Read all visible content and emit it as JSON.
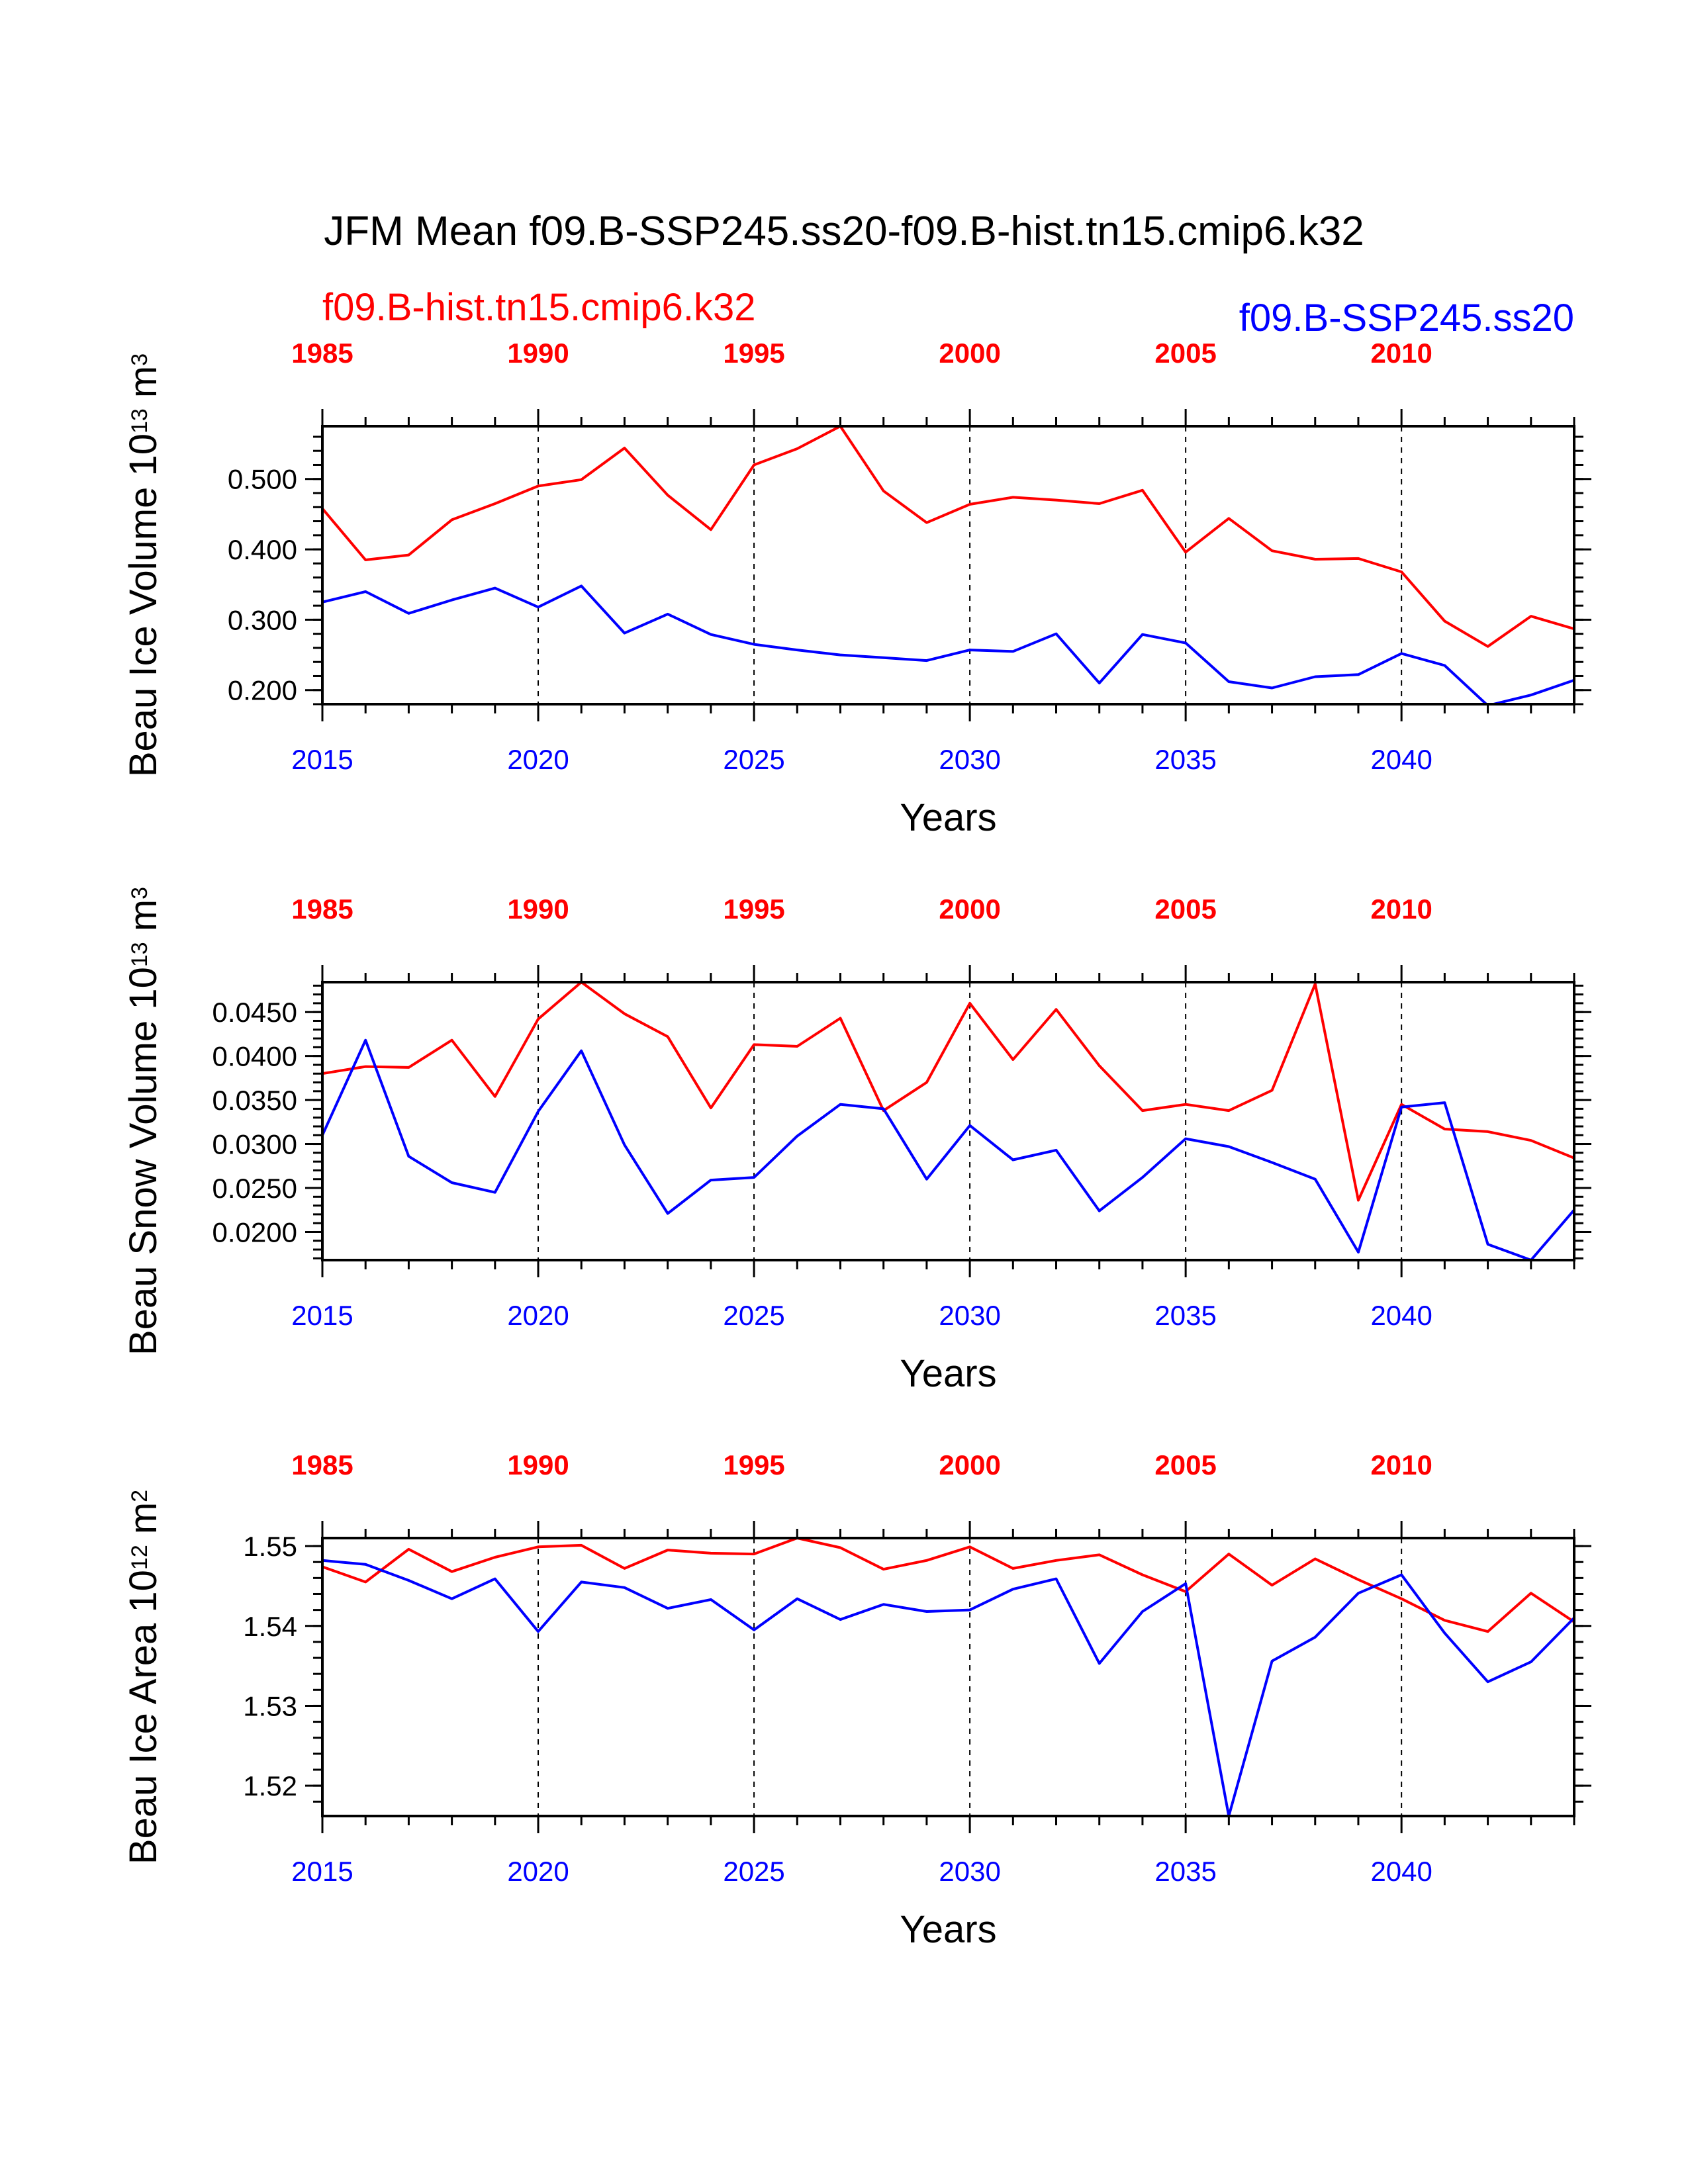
{
  "figure": {
    "title": "JFM Mean f09.B-SSP245.ss20-f09.B-hist.tn15.cmip6.k32",
    "left_label": "f09.B-hist.tn15.cmip6.k32",
    "right_label": "f09.B-SSP245.ss20",
    "left_label_color": "#ff0000",
    "right_label_color": "#0000ff"
  },
  "chart_data": [
    {
      "type": "line",
      "ylabel_base": "Beau Ice Volume 10",
      "ylabel_exp": "13",
      "ylabel_unit": " m",
      "ylabel_unit_exp": "3",
      "xlabel": "Years",
      "ylim": [
        0.18,
        0.575
      ],
      "yticks": [
        0.2,
        0.3,
        0.4,
        0.5
      ],
      "ytick_labels": [
        "0.200",
        "0.300",
        "0.400",
        "0.500"
      ],
      "yminor_step": 0.02,
      "xlim": [
        2015,
        2044
      ],
      "bottom_ticks": [
        2015,
        2020,
        2025,
        2030,
        2035,
        2040
      ],
      "bottom_tick_labels": [
        "2015",
        "2020",
        "2025",
        "2030",
        "2035",
        "2040"
      ],
      "top_tick_labels": [
        "1985",
        "1990",
        "1995",
        "2000",
        "2005",
        "2010"
      ],
      "vgrid_at": [
        2020,
        2025,
        2030,
        2035,
        2040
      ],
      "series": [
        {
          "color": "#ff0000",
          "x": [
            2015,
            2016,
            2017,
            2018,
            2019,
            2020,
            2021,
            2022,
            2023,
            2024,
            2025,
            2026,
            2027,
            2028,
            2029,
            2030,
            2031,
            2032,
            2033,
            2034,
            2035,
            2036,
            2037,
            2038,
            2039,
            2040,
            2041,
            2042,
            2043,
            2044
          ],
          "values": [
            0.458,
            0.385,
            0.392,
            0.442,
            0.465,
            0.49,
            0.499,
            0.544,
            0.477,
            0.428,
            0.52,
            0.543,
            0.575,
            0.483,
            0.438,
            0.464,
            0.474,
            0.47,
            0.465,
            0.484,
            0.396,
            0.444,
            0.398,
            0.386,
            0.387,
            0.368,
            0.298,
            0.262,
            0.305,
            0.287
          ]
        },
        {
          "color": "#0000ff",
          "x": [
            2015,
            2016,
            2017,
            2018,
            2019,
            2020,
            2021,
            2022,
            2023,
            2024,
            2025,
            2026,
            2027,
            2028,
            2029,
            2030,
            2031,
            2032,
            2033,
            2034,
            2035,
            2036,
            2037,
            2038,
            2039,
            2040,
            2041,
            2042,
            2043,
            2044
          ],
          "values": [
            0.325,
            0.34,
            0.309,
            0.328,
            0.345,
            0.318,
            0.348,
            0.281,
            0.308,
            0.279,
            0.265,
            0.257,
            0.25,
            0.246,
            0.242,
            0.257,
            0.255,
            0.28,
            0.21,
            0.279,
            0.267,
            0.212,
            0.203,
            0.219,
            0.222,
            0.252,
            0.235,
            0.178,
            0.193,
            0.214
          ]
        }
      ]
    },
    {
      "type": "line",
      "ylabel_base": "Beau Snow Volume 10",
      "ylabel_exp": "13",
      "ylabel_unit": " m",
      "ylabel_unit_exp": "3",
      "xlabel": "Years",
      "ylim": [
        0.0168,
        0.0484
      ],
      "yticks": [
        0.02,
        0.025,
        0.03,
        0.035,
        0.04,
        0.045
      ],
      "ytick_labels": [
        "0.0200",
        "0.0250",
        "0.0300",
        "0.0350",
        "0.0400",
        "0.0450"
      ],
      "yminor_step": 0.001,
      "xlim": [
        2015,
        2044
      ],
      "bottom_ticks": [
        2015,
        2020,
        2025,
        2030,
        2035,
        2040
      ],
      "bottom_tick_labels": [
        "2015",
        "2020",
        "2025",
        "2030",
        "2035",
        "2040"
      ],
      "top_tick_labels": [
        "1985",
        "1990",
        "1995",
        "2000",
        "2005",
        "2010"
      ],
      "vgrid_at": [
        2020,
        2025,
        2030,
        2035,
        2040
      ],
      "series": [
        {
          "color": "#ff0000",
          "x": [
            2015,
            2016,
            2017,
            2018,
            2019,
            2020,
            2021,
            2022,
            2023,
            2024,
            2025,
            2026,
            2027,
            2028,
            2029,
            2030,
            2031,
            2032,
            2033,
            2034,
            2035,
            2036,
            2037,
            2038,
            2039,
            2040,
            2041,
            2042,
            2043,
            2044
          ],
          "values": [
            0.038,
            0.0388,
            0.0387,
            0.0418,
            0.0354,
            0.0442,
            0.0484,
            0.0448,
            0.0422,
            0.0341,
            0.0413,
            0.0411,
            0.0443,
            0.0338,
            0.037,
            0.046,
            0.0396,
            0.0453,
            0.0389,
            0.0338,
            0.0345,
            0.0338,
            0.0361,
            0.0482,
            0.0236,
            0.0345,
            0.0317,
            0.0314,
            0.0304,
            0.0284
          ]
        },
        {
          "color": "#0000ff",
          "x": [
            2015,
            2016,
            2017,
            2018,
            2019,
            2020,
            2021,
            2022,
            2023,
            2024,
            2025,
            2026,
            2027,
            2028,
            2029,
            2030,
            2031,
            2032,
            2033,
            2034,
            2035,
            2036,
            2037,
            2038,
            2039,
            2040,
            2041,
            2042,
            2043,
            2044
          ],
          "values": [
            0.031,
            0.0418,
            0.0286,
            0.0256,
            0.0245,
            0.0337,
            0.0406,
            0.0299,
            0.0221,
            0.0259,
            0.0262,
            0.0309,
            0.0345,
            0.034,
            0.026,
            0.0321,
            0.0282,
            0.0293,
            0.0224,
            0.0262,
            0.0306,
            0.0297,
            0.0279,
            0.026,
            0.0177,
            0.0342,
            0.0347,
            0.0186,
            0.0168,
            0.0225
          ]
        }
      ]
    },
    {
      "type": "line",
      "ylabel_base": "Beau Ice Area 10",
      "ylabel_exp": "12",
      "ylabel_unit": " m",
      "ylabel_unit_exp": "2",
      "xlabel": "Years",
      "ylim": [
        1.5162,
        1.551
      ],
      "yticks": [
        1.52,
        1.53,
        1.54,
        1.55
      ],
      "ytick_labels": [
        "1.52",
        "1.53",
        "1.54",
        "1.55"
      ],
      "yminor_step": 0.002,
      "xlim": [
        2015,
        2044
      ],
      "bottom_ticks": [
        2015,
        2020,
        2025,
        2030,
        2035,
        2040
      ],
      "bottom_tick_labels": [
        "2015",
        "2020",
        "2025",
        "2030",
        "2035",
        "2040"
      ],
      "top_tick_labels": [
        "1985",
        "1990",
        "1995",
        "2000",
        "2005",
        "2010"
      ],
      "vgrid_at": [
        2020,
        2025,
        2030,
        2035,
        2040
      ],
      "series": [
        {
          "color": "#ff0000",
          "x": [
            2015,
            2016,
            2017,
            2018,
            2019,
            2020,
            2021,
            2022,
            2023,
            2024,
            2025,
            2026,
            2027,
            2028,
            2029,
            2030,
            2031,
            2032,
            2033,
            2034,
            2035,
            2036,
            2037,
            2038,
            2039,
            2040,
            2041,
            2042,
            2043,
            2044
          ],
          "values": [
            1.5474,
            1.5455,
            1.5496,
            1.5468,
            1.5486,
            1.5499,
            1.5501,
            1.5472,
            1.5495,
            1.5491,
            1.549,
            1.551,
            1.5498,
            1.5471,
            1.5482,
            1.5499,
            1.5472,
            1.5482,
            1.5489,
            1.5464,
            1.5443,
            1.549,
            1.5451,
            1.5484,
            1.5458,
            1.5434,
            1.5407,
            1.5393,
            1.5441,
            1.5405
          ]
        },
        {
          "color": "#0000ff",
          "x": [
            2015,
            2016,
            2017,
            2018,
            2019,
            2020,
            2021,
            2022,
            2023,
            2024,
            2025,
            2026,
            2027,
            2028,
            2029,
            2030,
            2031,
            2032,
            2033,
            2034,
            2035,
            2036,
            2037,
            2038,
            2039,
            2040,
            2041,
            2042,
            2043,
            2044
          ],
          "values": [
            1.5482,
            1.5477,
            1.5457,
            1.5434,
            1.5459,
            1.5393,
            1.5455,
            1.5448,
            1.5422,
            1.5433,
            1.5395,
            1.5434,
            1.5408,
            1.5427,
            1.5418,
            1.542,
            1.5446,
            1.5459,
            1.5353,
            1.5418,
            1.5453,
            1.5162,
            1.5356,
            1.5386,
            1.5441,
            1.5464,
            1.5391,
            1.533,
            1.5355,
            1.541
          ]
        }
      ]
    }
  ]
}
